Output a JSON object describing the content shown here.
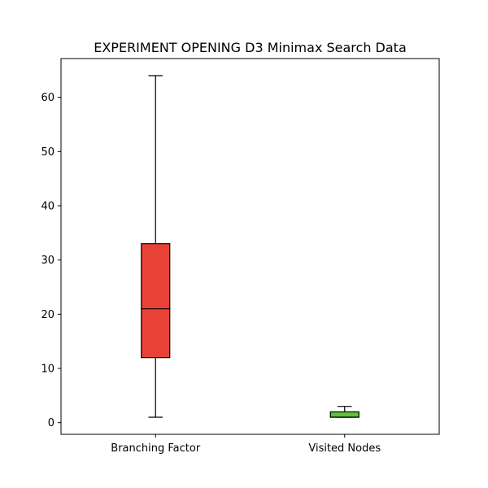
{
  "chart_data": {
    "type": "boxplot",
    "title": "EXPERIMENT OPENING D3 Minimax Search Data",
    "xlabel": "",
    "ylabel": "",
    "ylim": [
      -2.15,
      67.15
    ],
    "yticks": [
      0,
      10,
      20,
      30,
      40,
      50,
      60
    ],
    "grid": false,
    "categories": [
      "Branching Factor",
      "Visited Nodes"
    ],
    "boxes": [
      {
        "name": "Branching Factor",
        "whisker_low": 1,
        "q1": 12,
        "median": 21,
        "q3": 33,
        "whisker_high": 64,
        "color": "#e84136"
      },
      {
        "name": "Visited Nodes",
        "whisker_low": 1,
        "q1": 1,
        "median": 1,
        "q3": 2,
        "whisker_high": 3,
        "color": "#5ec23b"
      }
    ]
  }
}
